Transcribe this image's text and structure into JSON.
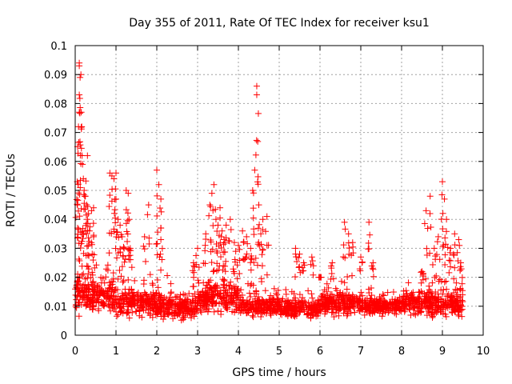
{
  "chart_data": {
    "type": "scatter",
    "title": "Day 355 of 2011, Rate Of TEC Index for receiver ksu1",
    "xlabel": "GPS time / hours",
    "ylabel": "ROTI / TECUs",
    "xlim": [
      0,
      10
    ],
    "ylim": [
      0,
      0.1
    ],
    "x_ticks": [
      "0",
      "1",
      "2",
      "3",
      "4",
      "5",
      "6",
      "7",
      "8",
      "9",
      "10"
    ],
    "y_ticks": [
      "0",
      "0.01",
      "0.02",
      "0.03",
      "0.04",
      "0.05",
      "0.06",
      "0.07",
      "0.08",
      "0.09",
      "0.1"
    ],
    "grid": true,
    "marker": "+",
    "series": [
      {
        "color": "#ff0000",
        "x_range": [
          0,
          9.5
        ],
        "points": [
          [
            0.05,
            0.053
          ],
          [
            0.06,
            0.037
          ],
          [
            0.08,
            0.072
          ],
          [
            0.1,
            0.094
          ],
          [
            0.1,
            0.093
          ],
          [
            0.1,
            0.083
          ],
          [
            0.1,
            0.077
          ],
          [
            0.12,
            0.089
          ],
          [
            0.14,
            0.09
          ],
          [
            0.15,
            0.077
          ],
          [
            0.16,
            0.072
          ],
          [
            0.18,
            0.059
          ],
          [
            0.2,
            0.054
          ],
          [
            0.22,
            0.05
          ],
          [
            0.25,
            0.048
          ],
          [
            0.28,
            0.045
          ],
          [
            0.3,
            0.04
          ],
          [
            0.3,
            0.062
          ],
          [
            0.32,
            0.042
          ],
          [
            0.35,
            0.036
          ],
          [
            0.4,
            0.043
          ],
          [
            0.45,
            0.044
          ],
          [
            0.45,
            0.034
          ],
          [
            0.85,
            0.056
          ],
          [
            0.9,
            0.055
          ],
          [
            0.95,
            0.054
          ],
          [
            1.0,
            0.056
          ],
          [
            1.0,
            0.047
          ],
          [
            1.05,
            0.04
          ],
          [
            1.1,
            0.038
          ],
          [
            1.15,
            0.034
          ],
          [
            1.2,
            0.03
          ],
          [
            1.25,
            0.05
          ],
          [
            1.3,
            0.049
          ],
          [
            1.32,
            0.04
          ],
          [
            1.35,
            0.03
          ],
          [
            1.7,
            0.034
          ],
          [
            1.8,
            0.045
          ],
          [
            2.0,
            0.057
          ],
          [
            2.05,
            0.052
          ],
          [
            2.1,
            0.047
          ],
          [
            2.1,
            0.033
          ],
          [
            2.9,
            0.025
          ],
          [
            3.0,
            0.03
          ],
          [
            3.2,
            0.035
          ],
          [
            3.3,
            0.045
          ],
          [
            3.35,
            0.049
          ],
          [
            3.4,
            0.052
          ],
          [
            3.45,
            0.04
          ],
          [
            3.5,
            0.038
          ],
          [
            3.55,
            0.044
          ],
          [
            3.6,
            0.036
          ],
          [
            3.65,
            0.033
          ],
          [
            3.7,
            0.038
          ],
          [
            3.8,
            0.04
          ],
          [
            3.9,
            0.032
          ],
          [
            4.0,
            0.031
          ],
          [
            4.1,
            0.036
          ],
          [
            4.2,
            0.034
          ],
          [
            4.3,
            0.03
          ],
          [
            4.35,
            0.05
          ],
          [
            4.4,
            0.057
          ],
          [
            4.45,
            0.086
          ],
          [
            4.45,
            0.083
          ],
          [
            4.5,
            0.045
          ],
          [
            4.55,
            0.035
          ],
          [
            4.6,
            0.04
          ],
          [
            4.7,
            0.041
          ],
          [
            5.4,
            0.03
          ],
          [
            5.5,
            0.028
          ],
          [
            5.6,
            0.025
          ],
          [
            5.8,
            0.027
          ],
          [
            6.0,
            0.02
          ],
          [
            6.3,
            0.025
          ],
          [
            6.6,
            0.039
          ],
          [
            6.7,
            0.035
          ],
          [
            6.8,
            0.032
          ],
          [
            7.0,
            0.027
          ],
          [
            7.2,
            0.039
          ],
          [
            7.3,
            0.025
          ],
          [
            8.5,
            0.022
          ],
          [
            8.6,
            0.043
          ],
          [
            8.7,
            0.048
          ],
          [
            8.8,
            0.03
          ],
          [
            8.9,
            0.034
          ],
          [
            9.0,
            0.053
          ],
          [
            9.05,
            0.047
          ],
          [
            9.1,
            0.04
          ],
          [
            9.2,
            0.03
          ],
          [
            9.3,
            0.035
          ],
          [
            9.4,
            0.033
          ],
          [
            9.45,
            0.025
          ]
        ],
        "baseline": {
          "segments": [
            {
              "x": [
                0.0,
                1.0
              ],
              "y_center": 0.014,
              "y_spread": 0.008
            },
            {
              "x": [
                1.0,
                2.0
              ],
              "y_center": 0.011,
              "y_spread": 0.006
            },
            {
              "x": [
                2.0,
                3.0
              ],
              "y_center": 0.01,
              "y_spread": 0.006
            },
            {
              "x": [
                3.0,
                4.0
              ],
              "y_center": 0.013,
              "y_spread": 0.008
            },
            {
              "x": [
                4.0,
                5.0
              ],
              "y_center": 0.01,
              "y_spread": 0.005
            },
            {
              "x": [
                5.0,
                6.0
              ],
              "y_center": 0.009,
              "y_spread": 0.004
            },
            {
              "x": [
                6.0,
                7.0
              ],
              "y_center": 0.011,
              "y_spread": 0.005
            },
            {
              "x": [
                7.0,
                8.0
              ],
              "y_center": 0.01,
              "y_spread": 0.004
            },
            {
              "x": [
                8.0,
                9.5
              ],
              "y_center": 0.011,
              "y_spread": 0.006
            }
          ]
        }
      }
    ]
  }
}
